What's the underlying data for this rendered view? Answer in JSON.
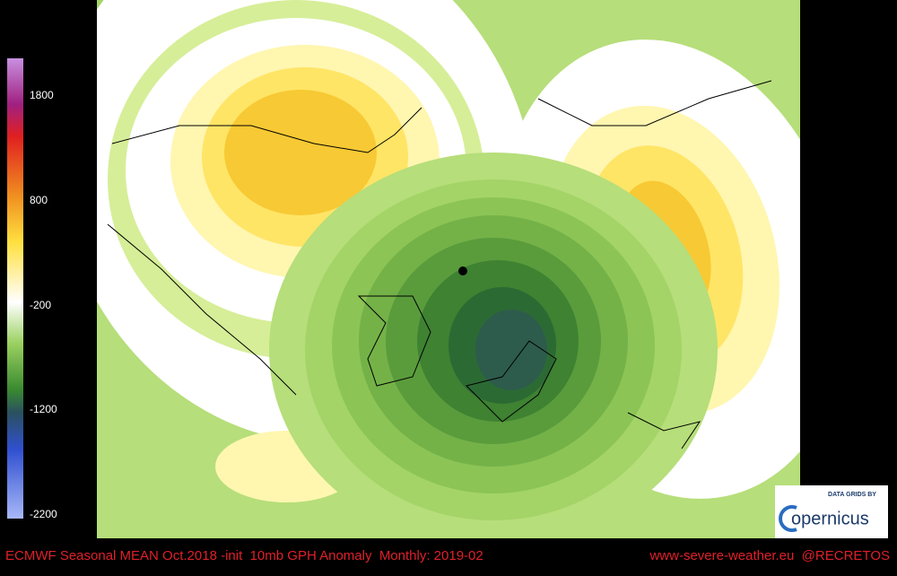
{
  "colorbar": {
    "labels": [
      1800,
      800,
      -200,
      -1200,
      -2200
    ]
  },
  "footer": {
    "caption": "ECMWF Seasonal MEAN Oct.2018 -init  10mb GPH Anomaly  Monthly: 2019-02",
    "credit": "www-severe-weather.eu  @RECRETOS"
  },
  "logo": {
    "tagline": "DATA GRIDS BY",
    "name": "opernicus"
  }
}
